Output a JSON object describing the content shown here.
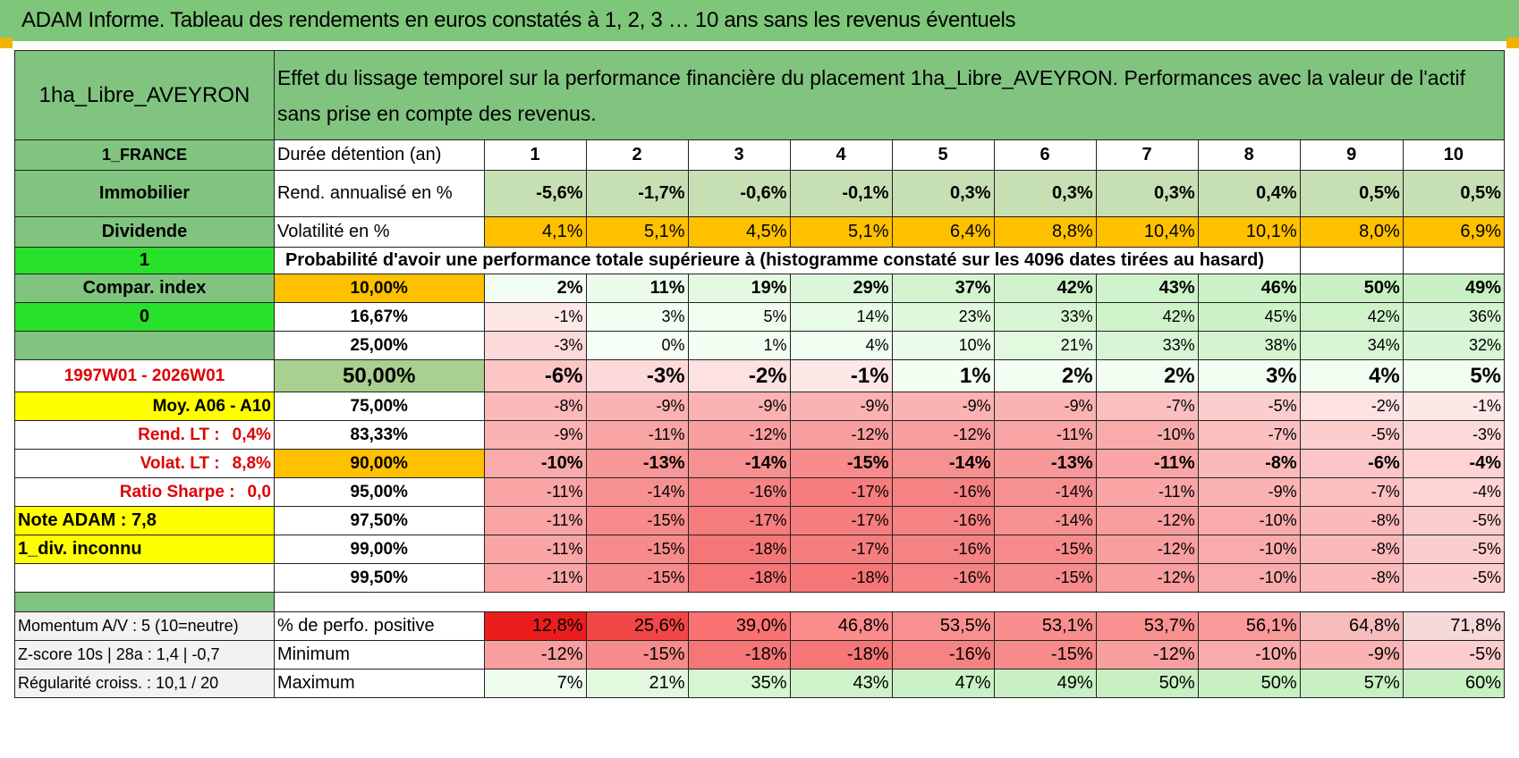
{
  "title": "ADAM Informe. Tableau des rendements en euros constatés à 1, 2, 3 … 10 ans sans les revenus éventuels",
  "header": {
    "asset": "1ha_Libre_AVEYRON",
    "description": "Effet du lissage temporel sur la performance financière du placement 1ha_Libre_AVEYRON. Performances avec la valeur de l'actif sans prise en compte des revenus."
  },
  "left_labels": {
    "country": "1_FRANCE",
    "type": "Immobilier",
    "dividende": "Dividende",
    "flag1": "1",
    "compar": "Compar. index",
    "flag0": "0",
    "period": "1997W01 - 2026W01",
    "moy": "Moy. A06 - A10",
    "rend_lt_label": "Rend. LT :",
    "rend_lt_value": "0,4%",
    "volat_lt_label": "Volat. LT :",
    "volat_lt_value": "8,8%",
    "sharpe_label": "Ratio Sharpe :",
    "sharpe_value": "0,0",
    "note": "Note ADAM : 7,8",
    "div": "1_div. inconnu",
    "momentum": "Momentum A/V : 5 (10=neutre)",
    "zscore": "Z-score 10s | 28a : 1,4 | -0,7",
    "regularite": "Régularité croiss. : 10,1 / 20"
  },
  "row_labels": {
    "duree": "Durée détention (an)",
    "rend": "Rend. annualisé en %",
    "vol": "Volatilité en %",
    "proba": "Probabilité d'avoir une performance totale supérieure à (histogramme constaté sur les 4096 dates tirées au hasard)",
    "pos": "% de perfo. positive",
    "min": "Minimum",
    "max": "Maximum"
  },
  "years": [
    "1",
    "2",
    "3",
    "4",
    "5",
    "6",
    "7",
    "8",
    "9",
    "10"
  ],
  "rend": [
    "-5,6%",
    "-1,7%",
    "-0,6%",
    "-0,1%",
    "0,3%",
    "0,3%",
    "0,3%",
    "0,4%",
    "0,5%",
    "0,5%"
  ],
  "vol": [
    "4,1%",
    "5,1%",
    "4,5%",
    "5,1%",
    "6,4%",
    "8,8%",
    "10,4%",
    "10,1%",
    "8,0%",
    "6,9%"
  ],
  "pct_rows": [
    {
      "p": "10,00%",
      "v": [
        "2%",
        "11%",
        "19%",
        "29%",
        "37%",
        "42%",
        "43%",
        "46%",
        "50%",
        "49%"
      ]
    },
    {
      "p": "16,67%",
      "v": [
        "-1%",
        "3%",
        "5%",
        "14%",
        "23%",
        "33%",
        "42%",
        "45%",
        "42%",
        "36%"
      ]
    },
    {
      "p": "25,00%",
      "v": [
        "-3%",
        "0%",
        "1%",
        "4%",
        "10%",
        "21%",
        "33%",
        "38%",
        "34%",
        "32%"
      ]
    },
    {
      "p": "50,00%",
      "v": [
        "-6%",
        "-3%",
        "-2%",
        "-1%",
        "1%",
        "2%",
        "2%",
        "3%",
        "4%",
        "5%"
      ]
    },
    {
      "p": "75,00%",
      "v": [
        "-8%",
        "-9%",
        "-9%",
        "-9%",
        "-9%",
        "-9%",
        "-7%",
        "-5%",
        "-2%",
        "-1%"
      ]
    },
    {
      "p": "83,33%",
      "v": [
        "-9%",
        "-11%",
        "-12%",
        "-12%",
        "-12%",
        "-11%",
        "-10%",
        "-7%",
        "-5%",
        "-3%"
      ]
    },
    {
      "p": "90,00%",
      "v": [
        "-10%",
        "-13%",
        "-14%",
        "-15%",
        "-14%",
        "-13%",
        "-11%",
        "-8%",
        "-6%",
        "-4%"
      ]
    },
    {
      "p": "95,00%",
      "v": [
        "-11%",
        "-14%",
        "-16%",
        "-17%",
        "-16%",
        "-14%",
        "-11%",
        "-9%",
        "-7%",
        "-4%"
      ]
    },
    {
      "p": "97,50%",
      "v": [
        "-11%",
        "-15%",
        "-17%",
        "-17%",
        "-16%",
        "-14%",
        "-12%",
        "-10%",
        "-8%",
        "-5%"
      ]
    },
    {
      "p": "99,00%",
      "v": [
        "-11%",
        "-15%",
        "-18%",
        "-17%",
        "-16%",
        "-15%",
        "-12%",
        "-10%",
        "-8%",
        "-5%"
      ]
    },
    {
      "p": "99,50%",
      "v": [
        "-11%",
        "-15%",
        "-18%",
        "-18%",
        "-16%",
        "-15%",
        "-12%",
        "-10%",
        "-8%",
        "-5%"
      ]
    }
  ],
  "pos": [
    "12,8%",
    "25,6%",
    "39,0%",
    "46,8%",
    "53,5%",
    "53,1%",
    "53,7%",
    "56,1%",
    "64,8%",
    "71,8%"
  ],
  "min": [
    "-12%",
    "-15%",
    "-18%",
    "-18%",
    "-16%",
    "-15%",
    "-12%",
    "-10%",
    "-9%",
    "-5%"
  ],
  "max": [
    "7%",
    "21%",
    "35%",
    "43%",
    "47%",
    "49%",
    "50%",
    "50%",
    "57%",
    "60%"
  ],
  "colors": {
    "title_bg": "#7dc67a",
    "label_green": "#80c47f",
    "bright_green": "#29e02a",
    "yellow": "#ffff00",
    "orange": "#ffc000",
    "red_text": "#e00000"
  }
}
